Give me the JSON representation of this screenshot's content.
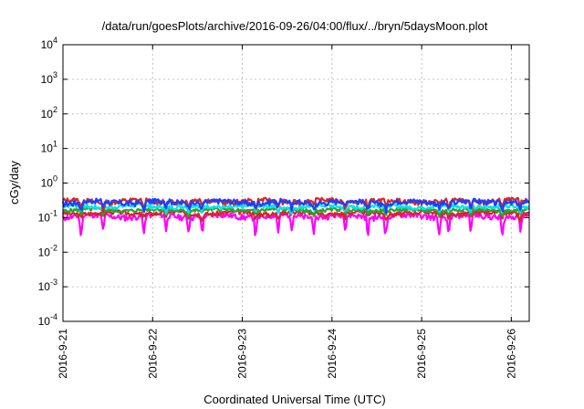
{
  "chart_data": {
    "type": "line",
    "title": "/data/run/goesPlots/archive/2016-09-26/04:00/flux/../bryn/5daysMoon.plot",
    "xlabel": "Coordinated Universal Time (UTC)",
    "ylabel": "cGy/day",
    "yscale": "log",
    "ylim": [
      0.0001,
      10000
    ],
    "yticks": [
      {
        "value": 0.0001,
        "base": "10",
        "exp": "-4"
      },
      {
        "value": 0.001,
        "base": "10",
        "exp": "-3"
      },
      {
        "value": 0.01,
        "base": "10",
        "exp": "-2"
      },
      {
        "value": 0.1,
        "base": "10",
        "exp": "-1"
      },
      {
        "value": 1,
        "base": "10",
        "exp": "0"
      },
      {
        "value": 10,
        "base": "10",
        "exp": "1"
      },
      {
        "value": 100,
        "base": "10",
        "exp": "2"
      },
      {
        "value": 1000,
        "base": "10",
        "exp": "3"
      },
      {
        "value": 10000,
        "base": "10",
        "exp": "4"
      }
    ],
    "xlim": [
      0,
      5.2
    ],
    "xticks": [
      {
        "value": 0,
        "label": "2016-9-21"
      },
      {
        "value": 1,
        "label": "2016-9-22"
      },
      {
        "value": 2,
        "label": "2016-9-23"
      },
      {
        "value": 3,
        "label": "2016-9-24"
      },
      {
        "value": 4,
        "label": "2016-9-25"
      },
      {
        "value": 5,
        "label": "2016-9-26"
      }
    ],
    "grid": true,
    "series": [
      {
        "color": "#ff00ff",
        "base": 0.11,
        "amp": 0.02,
        "seed": 11,
        "dip_scale": 3.2,
        "x": [
          0,
          5.2
        ]
      },
      {
        "color": "#d62728",
        "base": 0.135,
        "amp": 0.02,
        "seed": 3,
        "dip_scale": 1.4,
        "x": [
          0,
          5.2
        ]
      },
      {
        "color": "#2ca02c",
        "base": 0.165,
        "amp": 0.02,
        "seed": 5,
        "dip_scale": 1.4,
        "x": [
          0,
          5.2
        ]
      },
      {
        "color": "#00e5e5",
        "base": 0.21,
        "amp": 0.03,
        "seed": 7,
        "dip_scale": 1.5,
        "x": [
          0,
          5.2
        ]
      },
      {
        "color": "#d62728",
        "base": 0.3,
        "amp": 0.05,
        "seed": 13,
        "dip_scale": 1.6,
        "x": [
          0,
          5.2
        ]
      },
      {
        "color": "#1f3fff",
        "base": 0.28,
        "amp": 0.05,
        "seed": 17,
        "dip_scale": 1.7,
        "x": [
          0,
          5.2
        ]
      }
    ],
    "dips": [
      0.2,
      0.45,
      0.9,
      1.15,
      1.4,
      1.55,
      2.15,
      2.4,
      2.55,
      2.8,
      3.15,
      3.4,
      3.6,
      4.2,
      4.3,
      4.55,
      4.9,
      5.1
    ]
  }
}
